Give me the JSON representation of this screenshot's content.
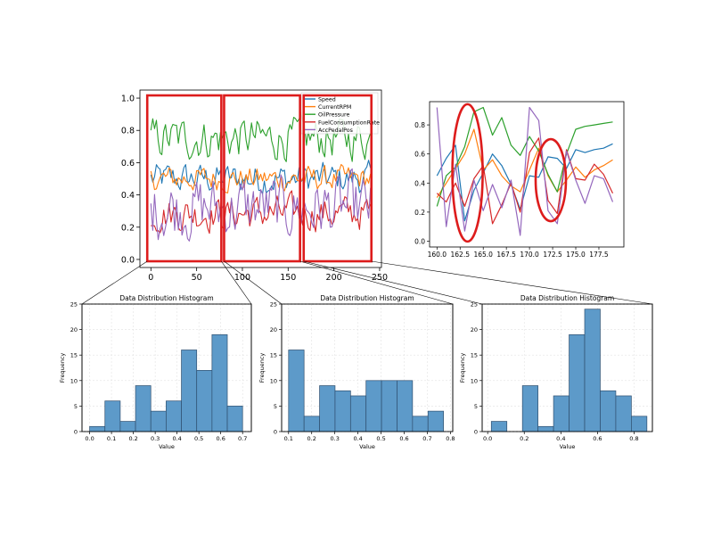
{
  "colors": {
    "speed": "#1f77b4",
    "rpm": "#ff7f0e",
    "oil": "#2ca02c",
    "fuel": "#d62728",
    "acc": "#9467bd",
    "highlight": "#dd1c1c",
    "hist_bar": "#5d9ac9",
    "hist_edge": "#2f4f6f"
  },
  "chart_data": [
    {
      "type": "line",
      "xlim": [
        -12,
        252
      ],
      "ylim": [
        -0.05,
        1.05
      ],
      "xticks": [
        "0",
        "50",
        "100",
        "150",
        "200",
        "250"
      ],
      "yticks": [
        "0.0",
        "0.2",
        "0.4",
        "0.6",
        "0.8",
        "1.0"
      ],
      "legend_placement": "top-right",
      "grid": false,
      "series": [
        {
          "name": "Speed",
          "key": "speed"
        },
        {
          "name": "CurrentRPM",
          "key": "rpm"
        },
        {
          "name": "OilPressure",
          "key": "oil"
        },
        {
          "name": "FuelConsumptionRate",
          "key": "fuel"
        },
        {
          "name": "AccPedalPos",
          "key": "acc"
        }
      ],
      "highlight_boxes": [
        [
          -4,
          77
        ],
        [
          80,
          163
        ],
        [
          167,
          241
        ]
      ]
    },
    {
      "type": "line",
      "xlim": [
        159.2,
        180.2
      ],
      "ylim": [
        -0.04,
        0.96
      ],
      "xticks": [
        "160.0",
        "162.5",
        "165.0",
        "167.5",
        "170.0",
        "172.5",
        "175.0",
        "177.5"
      ],
      "yticks": [
        "0.0",
        "0.2",
        "0.4",
        "0.6",
        "0.8"
      ],
      "grid": false,
      "x": [
        160,
        161,
        162,
        163,
        164,
        165,
        166,
        167,
        168,
        169,
        170,
        171,
        172,
        173,
        174,
        175,
        176,
        177,
        178,
        179
      ],
      "series": [
        {
          "key": "speed",
          "values": [
            0.45,
            0.57,
            0.66,
            0.14,
            0.35,
            0.47,
            0.6,
            0.52,
            0.39,
            0.22,
            0.45,
            0.44,
            0.58,
            0.57,
            0.5,
            0.63,
            0.61,
            0.63,
            0.64,
            0.67
          ]
        },
        {
          "key": "rpm",
          "values": [
            0.3,
            0.4,
            0.5,
            0.6,
            0.77,
            0.49,
            0.56,
            0.45,
            0.38,
            0.34,
            0.49,
            0.64,
            0.45,
            0.34,
            0.42,
            0.51,
            0.44,
            0.49,
            0.52,
            0.56
          ]
        },
        {
          "key": "oil",
          "values": [
            0.24,
            0.45,
            0.51,
            0.65,
            0.89,
            0.92,
            0.73,
            0.85,
            0.66,
            0.59,
            0.72,
            0.62,
            0.46,
            0.34,
            0.6,
            0.77,
            0.79,
            0.8,
            0.81,
            0.82
          ]
        },
        {
          "key": "fuel",
          "values": [
            0.33,
            0.27,
            0.4,
            0.24,
            0.43,
            0.52,
            0.12,
            0.25,
            0.4,
            0.2,
            0.61,
            0.71,
            0.28,
            0.19,
            0.63,
            0.43,
            0.42,
            0.53,
            0.46,
            0.33
          ]
        },
        {
          "key": "acc",
          "values": [
            0.92,
            0.1,
            0.53,
            0.07,
            0.42,
            0.21,
            0.39,
            0.23,
            0.42,
            0.04,
            0.92,
            0.83,
            0.21,
            0.12,
            0.62,
            0.42,
            0.26,
            0.45,
            0.43,
            0.27
          ]
        }
      ],
      "highlight_ellipses": [
        {
          "cx": 163.3,
          "cy": 0.47
        },
        {
          "cx": 172.3,
          "cy": 0.42
        }
      ]
    },
    {
      "type": "bar",
      "title": "Data Distribution Histogram",
      "xlabel": "Value",
      "ylabel": "Frequency",
      "ylim": [
        0,
        25
      ],
      "yticks": [
        0,
        5,
        10,
        15,
        20,
        25
      ],
      "xlim": [
        -0.035,
        0.74
      ],
      "xticks": [
        "0.0",
        "0.1",
        "0.2",
        "0.3",
        "0.4",
        "0.5",
        "0.6",
        "0.7"
      ],
      "xticks_values": [
        0,
        0.1,
        0.2,
        0.3,
        0.4,
        0.5,
        0.6,
        0.7
      ],
      "bin_edges": [
        0.0,
        0.07,
        0.14,
        0.21,
        0.28,
        0.35,
        0.42,
        0.49,
        0.56,
        0.63,
        0.7
      ],
      "values": [
        1,
        6,
        2,
        9,
        4,
        6,
        16,
        12,
        19,
        5
      ],
      "zoom_of_box": 0
    },
    {
      "type": "bar",
      "title": "Data Distribution Histogram",
      "xlabel": "Value",
      "ylabel": "Frequency",
      "ylim": [
        0,
        25
      ],
      "yticks": [
        0,
        5,
        10,
        15,
        20,
        25
      ],
      "xlim": [
        0.07,
        0.81
      ],
      "xticks": [
        "0.1",
        "0.2",
        "0.3",
        "0.4",
        "0.5",
        "0.6",
        "0.7",
        "0.8"
      ],
      "xticks_values": [
        0.1,
        0.2,
        0.3,
        0.4,
        0.5,
        0.6,
        0.7,
        0.8
      ],
      "bin_edges": [
        0.1,
        0.167,
        0.234,
        0.301,
        0.368,
        0.435,
        0.502,
        0.569,
        0.636,
        0.703,
        0.77
      ],
      "values": [
        16,
        3,
        9,
        8,
        7,
        10,
        10,
        10,
        3,
        4
      ],
      "zoom_of_box": 1
    },
    {
      "type": "bar",
      "title": "Data Distribution Histogram",
      "xlabel": "Value",
      "ylabel": "Frequency",
      "ylim": [
        0,
        25
      ],
      "yticks": [
        0,
        5,
        10,
        15,
        20,
        25
      ],
      "xlim": [
        -0.03,
        0.9
      ],
      "xticks": [
        "0.0",
        "0.2",
        "0.4",
        "0.6",
        "0.8"
      ],
      "xticks_values": [
        0,
        0.2,
        0.4,
        0.6,
        0.8
      ],
      "bin_edges": [
        0.02,
        0.105,
        0.19,
        0.275,
        0.36,
        0.445,
        0.53,
        0.615,
        0.7,
        0.785,
        0.87
      ],
      "values": [
        2,
        0,
        9,
        1,
        7,
        19,
        24,
        8,
        7,
        3
      ],
      "zoom_of_box": 2
    }
  ]
}
